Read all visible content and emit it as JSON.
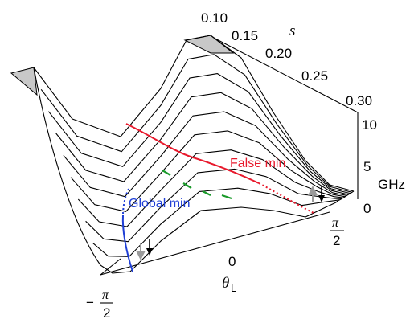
{
  "chart_data": {
    "type": "surface-3d",
    "title": "",
    "x_axis": {
      "label": "θL",
      "label_main": "θ",
      "label_sub": "L",
      "ticks": [
        {
          "value": -1.5708,
          "num": "π",
          "den": "2",
          "sign": "−"
        },
        {
          "value": 0,
          "text": "0"
        },
        {
          "value": 1.5708,
          "num": "π",
          "den": "2",
          "sign": ""
        }
      ],
      "range": [
        -1.5708,
        1.5708
      ]
    },
    "s_axis": {
      "label": "s",
      "ticks": [
        "0.10",
        "0.15",
        "0.20",
        "0.25",
        "0.30"
      ],
      "range": [
        0.1,
        0.3
      ]
    },
    "z_axis": {
      "unit": "GHz",
      "ticks": [
        "0",
        "5",
        "10"
      ],
      "range": [
        0,
        10
      ]
    },
    "s_slices": [
      0.1,
      0.1222,
      0.1444,
      0.1667,
      0.1889,
      0.2111,
      0.2333,
      0.2556,
      0.2778,
      0.3
    ],
    "annotations": {
      "false_min": {
        "text": "False min",
        "color": "#e8192c"
      },
      "global_min": {
        "text": "Global min",
        "color": "#1f3fd6"
      },
      "saddle_color": "#1a9a2a"
    }
  }
}
